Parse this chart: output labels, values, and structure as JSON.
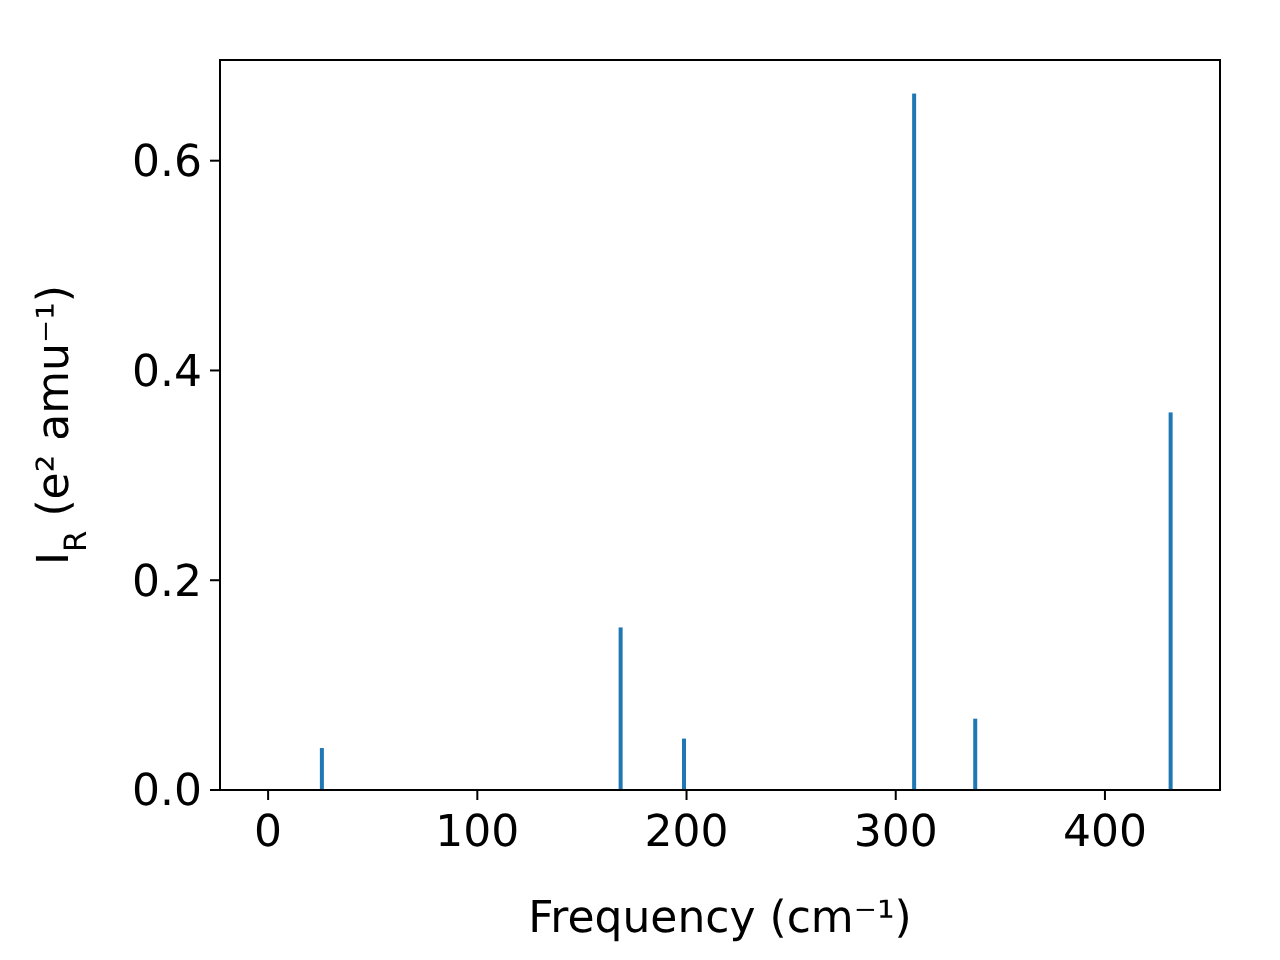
{
  "chart_data": {
    "type": "bar",
    "xlabel": "Frequency (cm⁻¹)",
    "ylabel": "I$_{R}$ (e² amu⁻¹)",
    "x": [
      25.7,
      168.5,
      198.8,
      308.8,
      338,
      431.4
    ],
    "values": [
      0.04,
      0.155,
      0.049,
      0.664,
      0.068,
      0.36
    ],
    "color": "#1f77b4",
    "xlim": [
      -23,
      455
    ],
    "xticks": [
      0,
      100,
      200,
      300,
      400
    ],
    "ylim": [
      0,
      0.696
    ],
    "yticks": [
      {
        "value": 0,
        "label": "0.0"
      },
      {
        "value": 0.2,
        "label": "0.2"
      },
      {
        "value": 0.4,
        "label": "0.4"
      },
      {
        "value": 0.6,
        "label": "0.6"
      }
    ]
  }
}
